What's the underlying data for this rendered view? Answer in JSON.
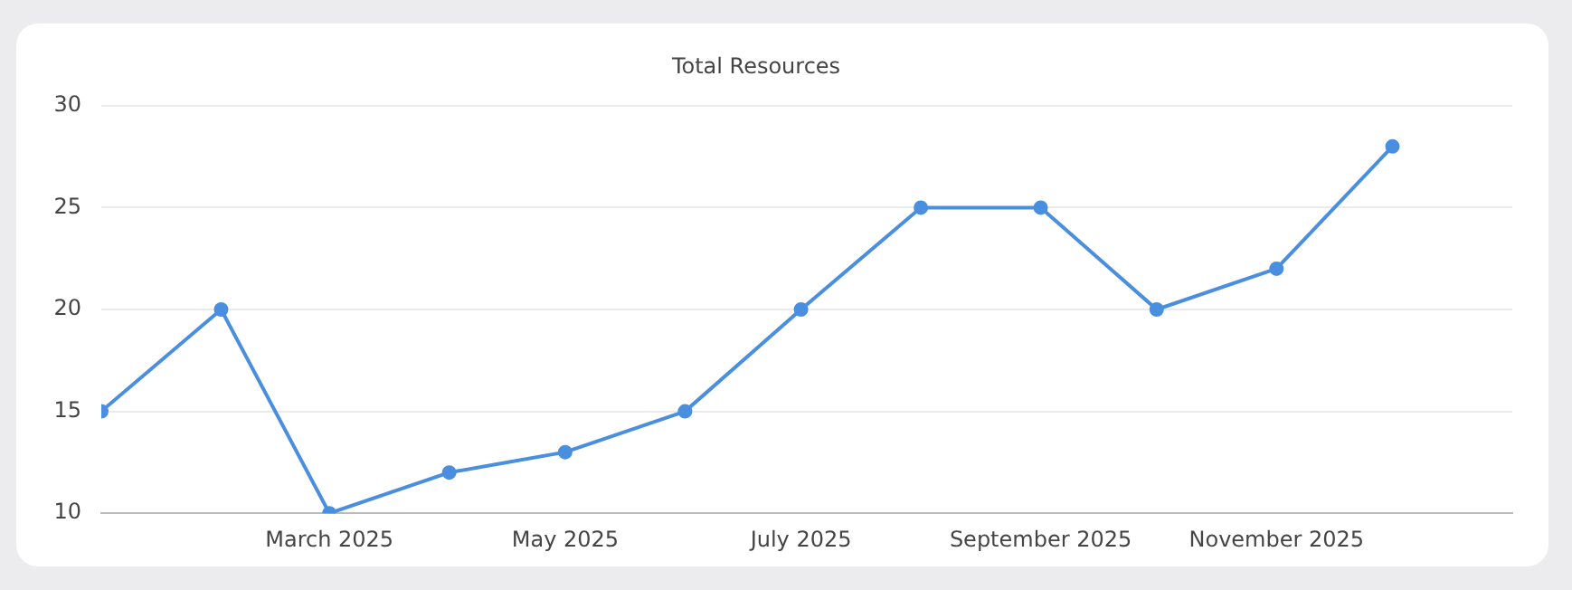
{
  "chart_data": {
    "type": "line",
    "title": "Total Resources",
    "x": [
      "2025-01-01",
      "2025-02-01",
      "2025-03-01",
      "2025-04-01",
      "2025-05-01",
      "2025-06-01",
      "2025-07-01",
      "2025-08-01",
      "2025-09-01",
      "2025-10-01",
      "2025-11-01",
      "2025-12-01"
    ],
    "series": [
      {
        "color": "#4a8fdf",
        "values": [
          15,
          20,
          10,
          12,
          13,
          15,
          20,
          25,
          25,
          20,
          22,
          28
        ]
      }
    ],
    "xlim": [
      "2025-01-01",
      "2026-01-01"
    ],
    "xticks": [
      {
        "value": "2025-03-01",
        "label": "March 2025"
      },
      {
        "value": "2025-05-01",
        "label": "May 2025"
      },
      {
        "value": "2025-07-01",
        "label": "July 2025"
      },
      {
        "value": "2025-09-01",
        "label": "September 2025"
      },
      {
        "value": "2025-11-01",
        "label": "November 2025"
      }
    ],
    "ylim": [
      10,
      30
    ],
    "yticks": [
      10,
      15,
      20,
      25,
      30
    ],
    "grid": "y",
    "legend": false,
    "marker": "circle",
    "line_style": "solid"
  }
}
